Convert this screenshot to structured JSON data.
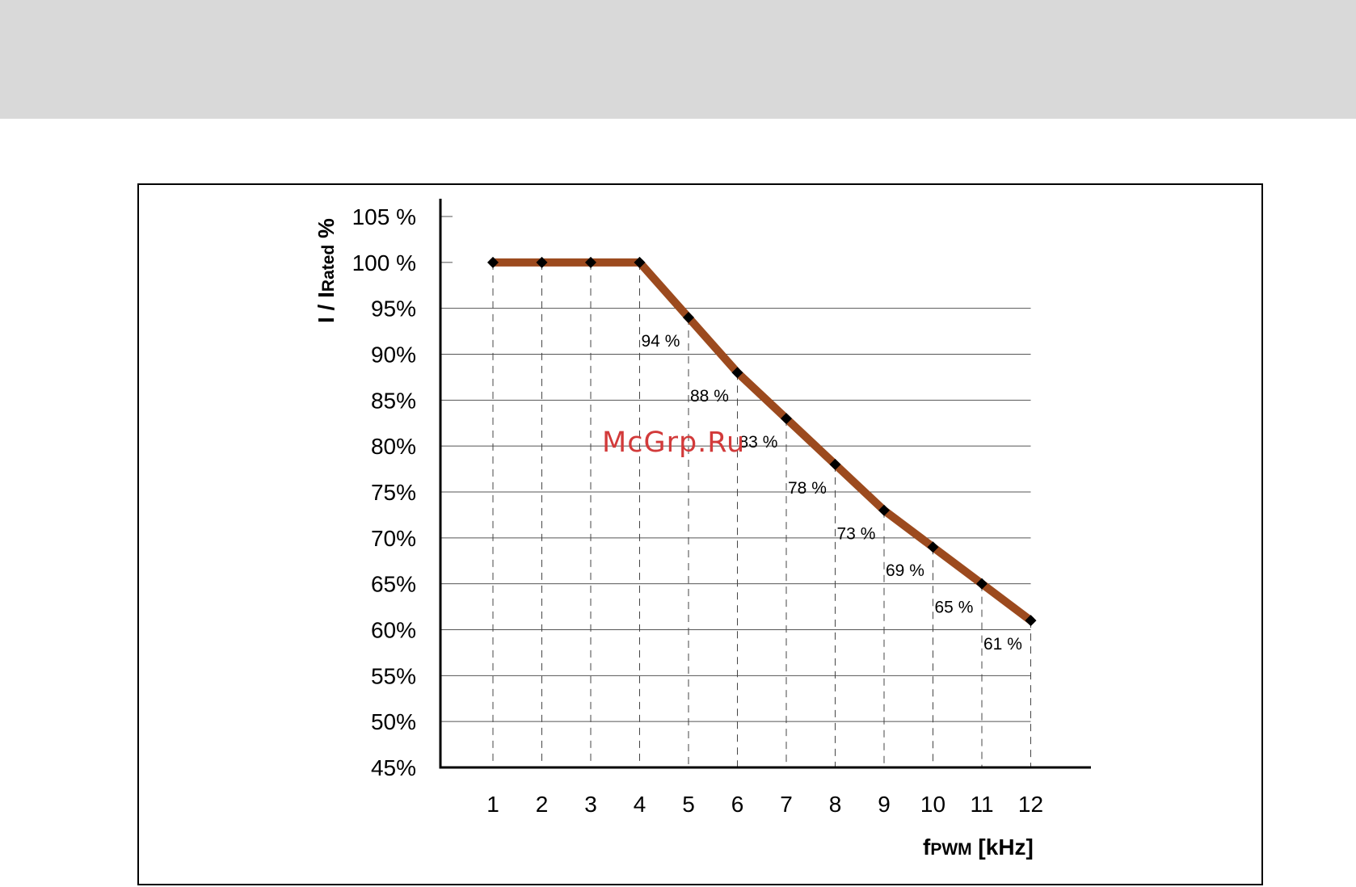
{
  "chart_data": {
    "type": "line",
    "x": [
      1,
      2,
      3,
      4,
      5,
      6,
      7,
      8,
      9,
      10,
      11,
      12
    ],
    "series": [
      {
        "values": [
          100,
          100,
          100,
          100,
          94,
          88,
          83,
          78,
          73,
          69,
          65,
          61
        ]
      }
    ],
    "data_labels": [
      "",
      "",
      "",
      "",
      "94 %",
      "88 %",
      "83 %",
      "78 %",
      "73 %",
      "69 %",
      "65 %",
      "61 %"
    ],
    "y_tick_labels": [
      "45%",
      "50%",
      "55%",
      "60%",
      "65%",
      "70%",
      "75%",
      "80%",
      "85%",
      "90%",
      "95%",
      "100 %",
      "105 %"
    ],
    "y_ticks": [
      45,
      50,
      55,
      60,
      65,
      70,
      75,
      80,
      85,
      90,
      95,
      100,
      105
    ],
    "x_tick_labels": [
      "1",
      "2",
      "3",
      "4",
      "5",
      "6",
      "7",
      "8",
      "9",
      "10",
      "11",
      "12"
    ],
    "ylabel_main": "I / I",
    "ylabel_sub": "Rated",
    "ylabel_unit": " %",
    "xlabel_main": "f",
    "xlabel_sub": "PWM",
    "xlabel_unit": " [kHz]",
    "ylim": [
      45,
      105
    ],
    "grid": "horizontal solid, vertical dashed",
    "line_color": "#9c4a1e",
    "marker_color": "#000000"
  },
  "watermark": "McGrp.Ru"
}
